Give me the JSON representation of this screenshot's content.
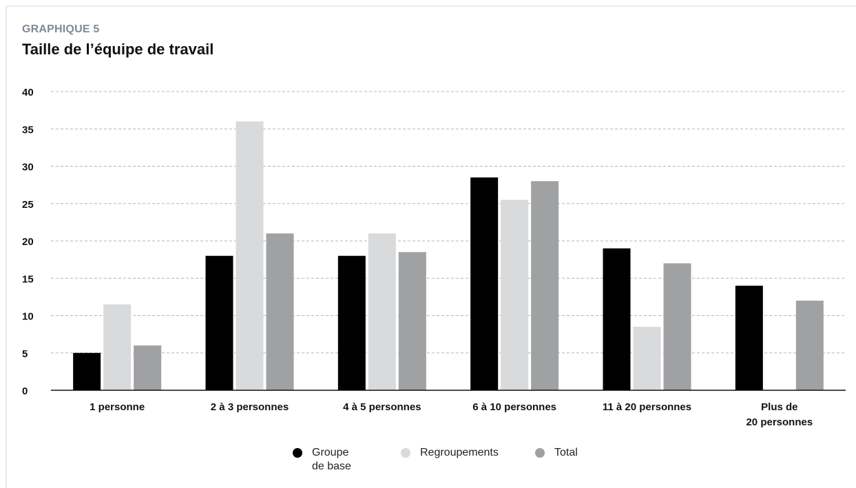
{
  "header": {
    "eyebrow": "GRAPHIQUE 5",
    "title": "Taille de l’équipe de travail"
  },
  "legend": [
    {
      "line1": "Groupe",
      "line2": "de base",
      "color": "#000000"
    },
    {
      "line1": "Regroupements",
      "line2": "",
      "color": "#d9dadc"
    },
    {
      "line1": "Total",
      "line2": "",
      "color": "#a0a1a3"
    }
  ],
  "chart_data": {
    "type": "bar",
    "title": "Taille de l’équipe de travail",
    "xlabel": "",
    "ylabel": "",
    "ylim": [
      0,
      40
    ],
    "yticks": [
      0,
      5,
      10,
      15,
      20,
      25,
      30,
      35,
      40
    ],
    "grid": true,
    "legend_position": "bottom",
    "categories": [
      [
        "1 personne"
      ],
      [
        "2 à 3 personnes"
      ],
      [
        "4 à 5 personnes"
      ],
      [
        "6 à 10 personnes"
      ],
      [
        "11 à 20 personnes"
      ],
      [
        "Plus de",
        "20 personnes"
      ]
    ],
    "series": [
      {
        "name": "Groupe de base",
        "color": "#000000",
        "values": [
          5,
          18,
          18,
          28.5,
          19,
          14
        ]
      },
      {
        "name": "Regroupements",
        "color": "#d9dadc",
        "values": [
          11.5,
          36,
          21,
          25.5,
          8.5,
          0
        ]
      },
      {
        "name": "Total",
        "color": "#a0a1a3",
        "values": [
          6,
          21,
          18.5,
          28,
          17,
          12
        ]
      }
    ]
  }
}
